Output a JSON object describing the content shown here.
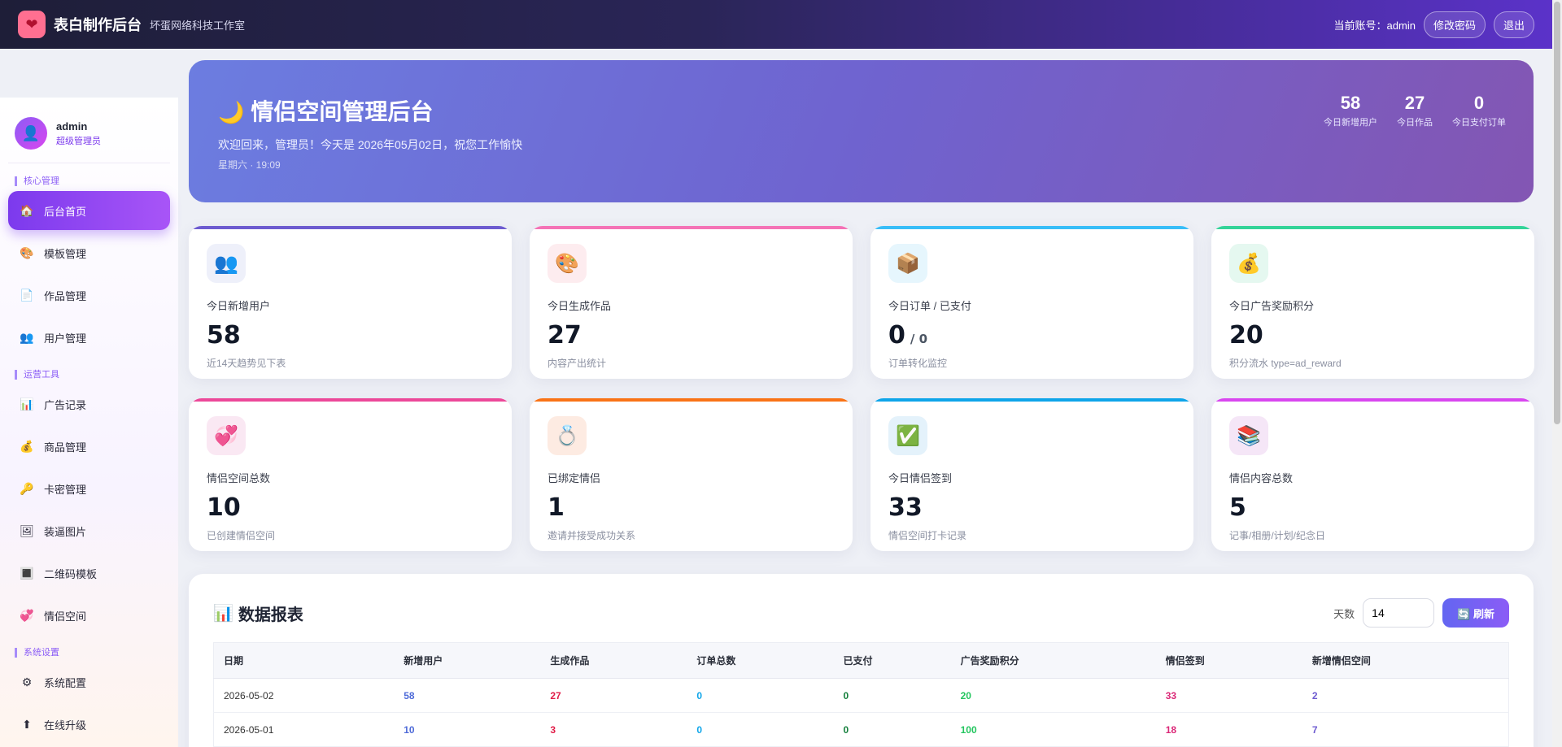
{
  "topbar": {
    "brand_name": "表白制作后台",
    "brand_sub": "坏蛋网络科技工作室",
    "account_label": "当前账号：admin",
    "change_password": "修改密码",
    "logout": "退出"
  },
  "sidebar": {
    "user_name": "admin",
    "user_role": "超级管理员",
    "sections": [
      {
        "title": "核心管理",
        "items": [
          {
            "label": "后台首页",
            "icon": "home-icon",
            "glyph": "🏠",
            "active": true
          },
          {
            "label": "模板管理",
            "icon": "palette-icon",
            "glyph": "🎨"
          },
          {
            "label": "作品管理",
            "icon": "document-icon",
            "glyph": "📄"
          },
          {
            "label": "用户管理",
            "icon": "users-icon",
            "glyph": "👥"
          }
        ]
      },
      {
        "title": "运营工具",
        "items": [
          {
            "label": "广告记录",
            "icon": "chart-icon",
            "glyph": "📊"
          },
          {
            "label": "商品管理",
            "icon": "money-bag-icon",
            "glyph": "💰"
          },
          {
            "label": "卡密管理",
            "icon": "key-icon",
            "glyph": "🔑"
          },
          {
            "label": "装逼图片",
            "icon": "image-icon",
            "glyph": "🖼"
          },
          {
            "label": "二维码模板",
            "icon": "qrcode-icon",
            "glyph": "🔳"
          },
          {
            "label": "情侣空间",
            "icon": "couple-icon",
            "glyph": "💞"
          }
        ]
      },
      {
        "title": "系统设置",
        "items": [
          {
            "label": "系统配置",
            "icon": "gear-icon",
            "glyph": "⚙"
          },
          {
            "label": "在线升级",
            "icon": "upgrade-icon",
            "glyph": "⬆"
          }
        ]
      }
    ]
  },
  "hero": {
    "title": "情侣空间管理后台",
    "welcome": "欢迎回来，管理员！今天是 2026年05月02日，祝您工作愉快",
    "date": "星期六 · 19:09",
    "stats": [
      {
        "value": "58",
        "label": "今日新增用户"
      },
      {
        "value": "27",
        "label": "今日作品"
      },
      {
        "value": "0",
        "label": "今日支付订单"
      }
    ]
  },
  "cards": [
    {
      "label": "今日新增用户",
      "value": "58",
      "sub": "",
      "desc": "近14天趋势见下表",
      "icon": "users-icon",
      "glyph": "👥",
      "bar": "#6d5bd0",
      "iconbg": "#eef0fa"
    },
    {
      "label": "今日生成作品",
      "value": "27",
      "sub": "",
      "desc": "内容产出统计",
      "icon": "palette-icon",
      "glyph": "🎨",
      "bar": "#f472b6",
      "iconbg": "#fdecef"
    },
    {
      "label": "今日订单 / 已支付",
      "value": "0",
      "sub": "/ 0",
      "desc": "订单转化监控",
      "icon": "package-icon",
      "glyph": "📦",
      "bar": "#38bdf8",
      "iconbg": "#e6f6fd"
    },
    {
      "label": "今日广告奖励积分",
      "value": "20",
      "sub": "",
      "desc": "积分流水 type=ad_reward",
      "icon": "money-bag-icon",
      "glyph": "💰",
      "bar": "#34d399",
      "iconbg": "#e5f8f0"
    },
    {
      "label": "情侣空间总数",
      "value": "10",
      "sub": "",
      "desc": "已创建情侣空间",
      "icon": "couple-icon",
      "glyph": "💞",
      "bar": "#ec4899",
      "iconbg": "#fae8f3"
    },
    {
      "label": "已绑定情侣",
      "value": "1",
      "sub": "",
      "desc": "邀请并接受成功关系",
      "icon": "ring-icon",
      "glyph": "💍",
      "bar": "#f97316",
      "iconbg": "#fdebe2"
    },
    {
      "label": "今日情侣签到",
      "value": "33",
      "sub": "",
      "desc": "情侣空间打卡记录",
      "icon": "checkmark-icon",
      "glyph": "✅",
      "bar": "#0ea5e9",
      "iconbg": "#e4f2fb"
    },
    {
      "label": "情侣内容总数",
      "value": "5",
      "sub": "",
      "desc": "记事/相册/计划/纪念日",
      "icon": "books-icon",
      "glyph": "📚",
      "bar": "#d946ef",
      "iconbg": "#f5e6f7"
    }
  ],
  "report": {
    "title": "数据报表",
    "days_label": "天数",
    "days_value": "14",
    "refresh": "刷新",
    "columns": [
      "日期",
      "新增用户",
      "生成作品",
      "订单总数",
      "已支付",
      "广告奖励积分",
      "情侣签到",
      "新增情侣空间"
    ],
    "col_colors": [
      "#333333",
      "#4f6bd8",
      "#e11d48",
      "#0ea5e9",
      "#15803d",
      "#22c55e",
      "#db2777",
      "#6d5bd0"
    ],
    "rows": [
      [
        "2026-05-02",
        "58",
        "27",
        "0",
        "0",
        "20",
        "33",
        "2"
      ],
      [
        "2026-05-01",
        "10",
        "3",
        "0",
        "0",
        "100",
        "18",
        "7"
      ]
    ]
  }
}
